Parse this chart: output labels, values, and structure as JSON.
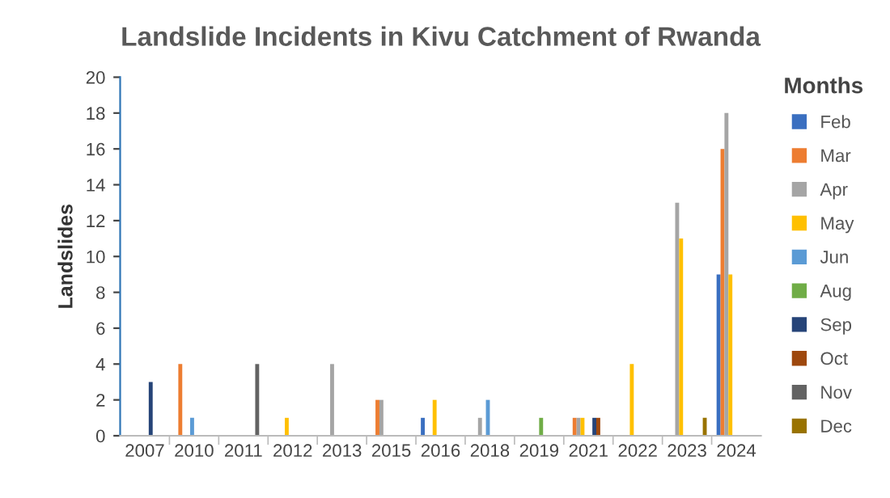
{
  "chart_data": {
    "type": "bar",
    "title": "Landslide Incidents in Kivu Catchment of Rwanda",
    "ylabel": "Landslides",
    "legend_title": "Months",
    "legend": "right",
    "categories": [
      "2007",
      "2010",
      "2011",
      "2012",
      "2013",
      "2015",
      "2016",
      "2018",
      "2019",
      "2021",
      "2022",
      "2023",
      "2024"
    ],
    "series": [
      {
        "name": "Feb",
        "color": "#3a6fc0",
        "values": [
          null,
          null,
          null,
          null,
          null,
          null,
          1,
          null,
          null,
          null,
          null,
          null,
          9
        ]
      },
      {
        "name": "Mar",
        "color": "#ed7d31",
        "values": [
          null,
          4,
          null,
          null,
          null,
          2,
          null,
          null,
          null,
          1,
          null,
          null,
          16
        ]
      },
      {
        "name": "Apr",
        "color": "#a5a5a5",
        "values": [
          null,
          null,
          null,
          null,
          4,
          2,
          null,
          1,
          null,
          1,
          null,
          13,
          18
        ]
      },
      {
        "name": "May",
        "color": "#ffc000",
        "values": [
          null,
          null,
          null,
          1,
          null,
          null,
          2,
          null,
          null,
          1,
          4,
          11,
          9
        ]
      },
      {
        "name": "Jun",
        "color": "#5b9bd5",
        "values": [
          null,
          1,
          null,
          null,
          null,
          null,
          null,
          2,
          null,
          null,
          null,
          null,
          null
        ]
      },
      {
        "name": "Aug",
        "color": "#70ad47",
        "values": [
          null,
          null,
          null,
          null,
          null,
          null,
          null,
          null,
          1,
          null,
          null,
          null,
          null
        ]
      },
      {
        "name": "Sep",
        "color": "#264478",
        "values": [
          3,
          null,
          null,
          null,
          null,
          null,
          null,
          null,
          null,
          1,
          null,
          null,
          null
        ]
      },
      {
        "name": "Oct",
        "color": "#9e480e",
        "values": [
          null,
          null,
          null,
          null,
          null,
          null,
          null,
          null,
          null,
          1,
          null,
          null,
          null
        ]
      },
      {
        "name": "Nov",
        "color": "#636363",
        "values": [
          null,
          null,
          4,
          null,
          null,
          null,
          null,
          null,
          null,
          null,
          null,
          null,
          null
        ]
      },
      {
        "name": "Dec",
        "color": "#997300",
        "values": [
          null,
          null,
          null,
          null,
          null,
          null,
          null,
          null,
          null,
          null,
          null,
          1,
          null
        ]
      }
    ],
    "ylim": [
      0,
      20
    ],
    "yticks": [
      0,
      2,
      4,
      6,
      8,
      10,
      12,
      14,
      16,
      18,
      20
    ],
    "grid": false
  }
}
